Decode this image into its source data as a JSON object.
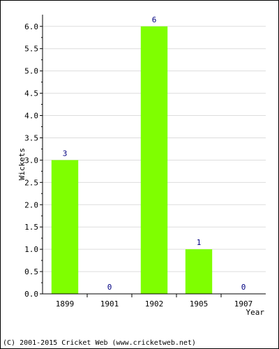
{
  "chart_data": {
    "type": "bar",
    "categories": [
      "1899",
      "1901",
      "1902",
      "1905",
      "1907"
    ],
    "values": [
      3,
      0,
      6,
      1,
      0
    ],
    "data_labels": [
      "3",
      "0",
      "6",
      "1",
      "0"
    ],
    "xlabel": "Year",
    "ylabel": "Wickets",
    "ylim": [
      0,
      6.2
    ],
    "yticks": [
      "0.0",
      "0.5",
      "1.0",
      "1.5",
      "2.0",
      "2.5",
      "3.0",
      "3.5",
      "4.0",
      "4.5",
      "5.0",
      "5.5",
      "6.0"
    ],
    "grid": true,
    "bar_color": "#7fff00",
    "label_color": "#000080",
    "grid_color": "#dddddd"
  },
  "footer": "(C) 2001-2015 Cricket Web (www.cricketweb.net)"
}
